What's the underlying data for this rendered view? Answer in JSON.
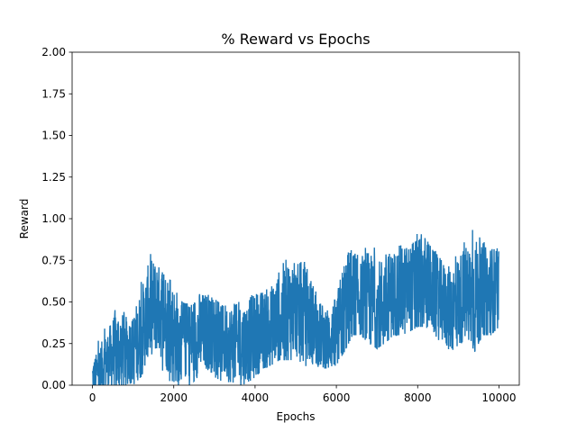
{
  "chart_data": {
    "type": "line",
    "title": "% Reward vs Epochs",
    "xlabel": "Epochs",
    "ylabel": "Reward",
    "xlim": [
      -500,
      10500
    ],
    "ylim": [
      0.0,
      2.0
    ],
    "xticks": [
      0,
      2000,
      4000,
      6000,
      8000,
      10000
    ],
    "xtick_labels": [
      "0",
      "2000",
      "4000",
      "6000",
      "8000",
      "10000"
    ],
    "yticks": [
      0.0,
      0.25,
      0.5,
      0.75,
      1.0,
      1.25,
      1.5,
      1.75,
      2.0
    ],
    "ytick_labels": [
      "0.00",
      "0.25",
      "0.50",
      "0.75",
      "1.00",
      "1.25",
      "1.50",
      "1.75",
      "2.00"
    ],
    "grid": false,
    "legend": "none",
    "series": [
      {
        "color": "#1f77b4",
        "x": [
          0,
          200,
          400,
          600,
          800,
          1000,
          1200,
          1400,
          1600,
          1800,
          2000,
          2200,
          2400,
          2600,
          2800,
          3000,
          3200,
          3400,
          3600,
          3800,
          4000,
          4200,
          4400,
          4600,
          4800,
          5000,
          5200,
          5400,
          5600,
          5800,
          6000,
          6200,
          6400,
          6600,
          6800,
          7000,
          7200,
          7400,
          7600,
          7800,
          8000,
          8200,
          8400,
          8600,
          8800,
          9000,
          9200,
          9400,
          9600,
          9800,
          10000
        ],
        "y_mean": [
          0.05,
          0.1,
          0.15,
          0.2,
          0.2,
          0.22,
          0.3,
          0.45,
          0.48,
          0.4,
          0.3,
          0.28,
          0.27,
          0.3,
          0.32,
          0.3,
          0.27,
          0.25,
          0.24,
          0.26,
          0.3,
          0.32,
          0.35,
          0.4,
          0.45,
          0.45,
          0.42,
          0.38,
          0.3,
          0.27,
          0.32,
          0.45,
          0.55,
          0.52,
          0.5,
          0.45,
          0.5,
          0.55,
          0.55,
          0.58,
          0.6,
          0.62,
          0.55,
          0.5,
          0.45,
          0.5,
          0.55,
          0.52,
          0.55,
          0.55,
          0.58
        ],
        "y_min": [
          0.0,
          0.0,
          0.0,
          0.0,
          0.0,
          0.0,
          0.05,
          0.2,
          0.15,
          0.05,
          0.0,
          0.0,
          0.0,
          0.05,
          0.08,
          0.05,
          0.02,
          0.0,
          0.0,
          0.0,
          0.05,
          0.1,
          0.12,
          0.15,
          0.15,
          0.15,
          0.12,
          0.1,
          0.1,
          0.1,
          0.12,
          0.2,
          0.3,
          0.3,
          0.25,
          0.22,
          0.25,
          0.3,
          0.3,
          0.32,
          0.35,
          0.35,
          0.3,
          0.25,
          0.2,
          0.22,
          0.3,
          0.2,
          0.3,
          0.3,
          0.35
        ],
        "y_max": [
          0.18,
          0.3,
          0.38,
          0.58,
          0.42,
          0.42,
          0.62,
          0.8,
          0.72,
          0.65,
          0.62,
          0.5,
          0.48,
          0.58,
          0.55,
          0.52,
          0.48,
          0.48,
          0.5,
          0.5,
          0.58,
          0.6,
          0.62,
          0.75,
          0.8,
          0.72,
          0.75,
          0.62,
          0.5,
          0.5,
          0.55,
          0.85,
          0.9,
          0.75,
          0.88,
          0.8,
          0.85,
          0.82,
          0.9,
          0.85,
          0.98,
          0.92,
          0.82,
          0.75,
          0.72,
          0.8,
          0.88,
          0.95,
          0.85,
          0.9,
          0.8
        ]
      }
    ]
  }
}
